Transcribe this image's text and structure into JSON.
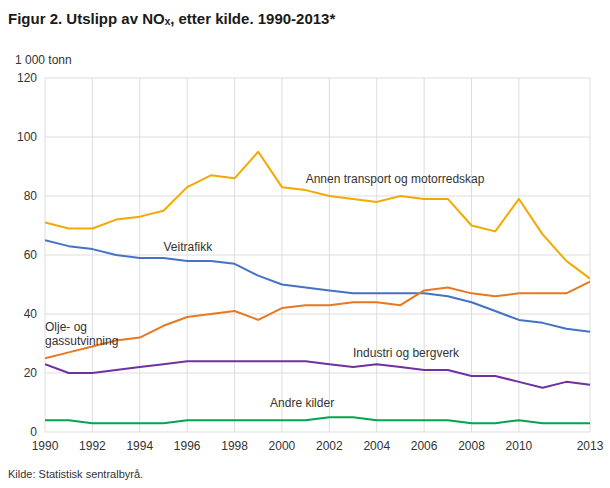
{
  "chart_data": {
    "type": "line",
    "title": "Figur 2. Utslipp av NOₓ, etter kilde. 1990-2013*",
    "y_label": "1 000 tonn",
    "source": "Kilde: Statistisk sentralbyrå.",
    "x": [
      1990,
      1991,
      1992,
      1993,
      1994,
      1995,
      1996,
      1997,
      1998,
      1999,
      2000,
      2001,
      2002,
      2003,
      2004,
      2005,
      2006,
      2007,
      2008,
      2009,
      2010,
      2011,
      2012,
      2013
    ],
    "series": [
      {
        "name": "Annen transport og motorredskap",
        "color": "#F5A800",
        "values": [
          71,
          69,
          69,
          72,
          73,
          75,
          83,
          87,
          86,
          95,
          83,
          82,
          80,
          79,
          78,
          80,
          79,
          79,
          70,
          68,
          79,
          67,
          58,
          52
        ]
      },
      {
        "name": "Veitrafikk",
        "color": "#4472C4",
        "values": [
          65,
          63,
          62,
          60,
          59,
          59,
          58,
          58,
          57,
          53,
          50,
          49,
          48,
          47,
          47,
          47,
          47,
          46,
          44,
          41,
          38,
          37,
          35,
          34
        ]
      },
      {
        "name": "Olje- og gassutvinning",
        "color": "#E87722",
        "values": [
          25,
          27,
          29,
          31,
          32,
          36,
          39,
          40,
          41,
          38,
          42,
          43,
          43,
          44,
          44,
          43,
          48,
          49,
          47,
          46,
          47,
          47,
          47,
          51
        ]
      },
      {
        "name": "Industri og bergverk",
        "color": "#7030A0",
        "values": [
          23,
          20,
          20,
          21,
          22,
          23,
          24,
          24,
          24,
          24,
          24,
          24,
          23,
          22,
          23,
          22,
          21,
          21,
          19,
          19,
          17,
          15,
          17,
          16
        ]
      },
      {
        "name": "Andre kilder",
        "color": "#00A550",
        "values": [
          4,
          4,
          3,
          3,
          3,
          3,
          4,
          4,
          4,
          4,
          4,
          4,
          5,
          5,
          4,
          4,
          4,
          4,
          3,
          3,
          4,
          3,
          3,
          3
        ]
      }
    ],
    "annotations": [
      {
        "text": "Annen transport og motorredskap",
        "x": 2001,
        "y": 83
      },
      {
        "text": "Veitrafikk",
        "x": 1995,
        "y": 60
      },
      {
        "text": "Olje- og\ngassutvinning",
        "x": 1990,
        "y": 28
      },
      {
        "text": "Industri og bergverk",
        "x": 2003,
        "y": 24
      },
      {
        "text": "Andre kilder",
        "x": 1999.5,
        "y": 7
      }
    ],
    "xlim": [
      1990,
      2013
    ],
    "xticks": [
      1990,
      1992,
      1994,
      1996,
      1998,
      2000,
      2002,
      2004,
      2006,
      2008,
      2010,
      2013
    ],
    "ylim": [
      0,
      120
    ],
    "yticks": [
      0,
      20,
      40,
      60,
      80,
      100,
      120
    ],
    "grid": true
  }
}
